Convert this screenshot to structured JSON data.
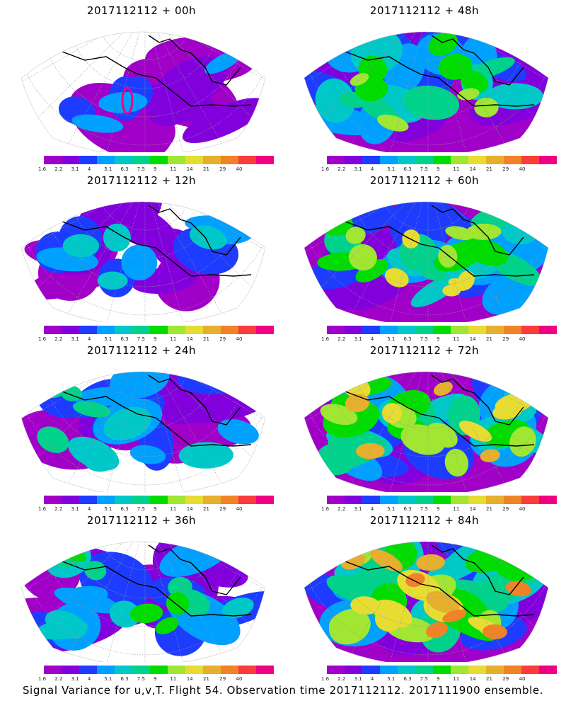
{
  "colorbar": {
    "labels": [
      "1.6",
      "2.2",
      "3.1",
      "4",
      "5.1",
      "6.3",
      "7.5",
      "9",
      "11",
      "14",
      "21",
      "29",
      "40"
    ],
    "colors": [
      "#a000c8",
      "#8200dc",
      "#1e3cff",
      "#00a0ff",
      "#00c8c8",
      "#00d28c",
      "#00dc00",
      "#a0e632",
      "#e6dc32",
      "#e6af2d",
      "#f08228",
      "#fa3c3c",
      "#f00082"
    ]
  },
  "panels": [
    {
      "title": "2017112112 + 00h",
      "intensity": 0.15,
      "ring": true
    },
    {
      "title": "2017112112 + 12h",
      "intensity": 0.3
    },
    {
      "title": "2017112112 + 24h",
      "intensity": 0.4
    },
    {
      "title": "2017112112 + 36h",
      "intensity": 0.5
    },
    {
      "title": "2017112112 + 48h",
      "intensity": 0.62
    },
    {
      "title": "2017112112 + 60h",
      "intensity": 0.7
    },
    {
      "title": "2017112112 + 72h",
      "intensity": 0.78
    },
    {
      "title": "2017112112 + 84h",
      "intensity": 0.86
    }
  ],
  "footer": "Signal Variance for u,v,T. Flight 54. Observation time 2017112112. 2017111900 ensemble."
}
